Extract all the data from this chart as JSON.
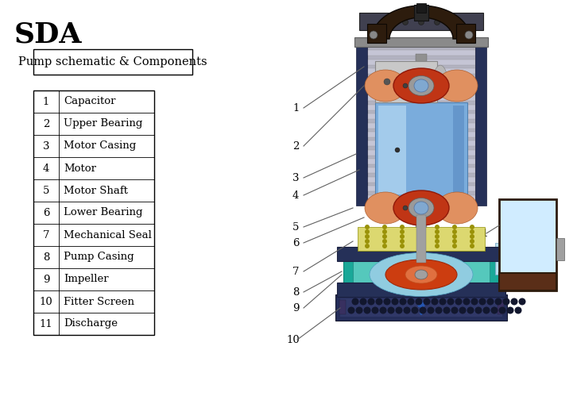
{
  "title": "SDA",
  "subtitle_box": "Pump schematic & Components",
  "table_rows": [
    [
      "1",
      "Capacitor"
    ],
    [
      "2",
      "Upper Bearing"
    ],
    [
      "3",
      "Motor Casing"
    ],
    [
      "4",
      "Motor"
    ],
    [
      "5",
      "Motor Shaft"
    ],
    [
      "6",
      "Lower Bearing"
    ],
    [
      "7",
      "Mechanical Seal"
    ],
    [
      "8",
      "Pump Casing"
    ],
    [
      "9",
      "Impeller"
    ],
    [
      "10",
      "Fitter Screen"
    ],
    [
      "11",
      "Discharge"
    ]
  ],
  "bg_color": "#ffffff",
  "text_color": "#000000",
  "title_fontsize": 26,
  "subtitle_fontsize": 10.5,
  "table_fontsize": 9.5,
  "pump_colors": {
    "handle_dark": "#2d1c0d",
    "handle_brown": "#4a2e14",
    "cable_dark": "#282828",
    "top_collar_grey": "#8a8a8a",
    "casing_grey": "#b2b2c0",
    "casing_rib": "#c5c5d5",
    "navy_side": "#253058",
    "capacitor_grey": "#c2c2c2",
    "bearing_orange": "#e0956a",
    "bearing_red": "#c03515",
    "motor_blue_light": "#aed4f0",
    "motor_blue": "#7aacdc",
    "shaft_grey": "#909090",
    "seal_yellow": "#dcd870",
    "seal_dot": "#9a9208",
    "pump_teal_dark": "#1aa898",
    "pump_teal_light": "#55c8bc",
    "impeller_red": "#cc3d10",
    "impeller_orange": "#e07040",
    "impeller_blue": "#80cce0",
    "screen_navy": "#252e5a",
    "screen_hole": "#12172e",
    "discharge_pipe": "#b8dff0",
    "discharge_box_edge": "#2d1c0d",
    "discharge_box_fill": "#d0ecff",
    "discharge_brown": "#5a2e18",
    "arrow_blue": "#2555b0",
    "connector_grey": "#a0a0a0",
    "top_ring_dark": "#404050",
    "green_cap": "#506070"
  }
}
